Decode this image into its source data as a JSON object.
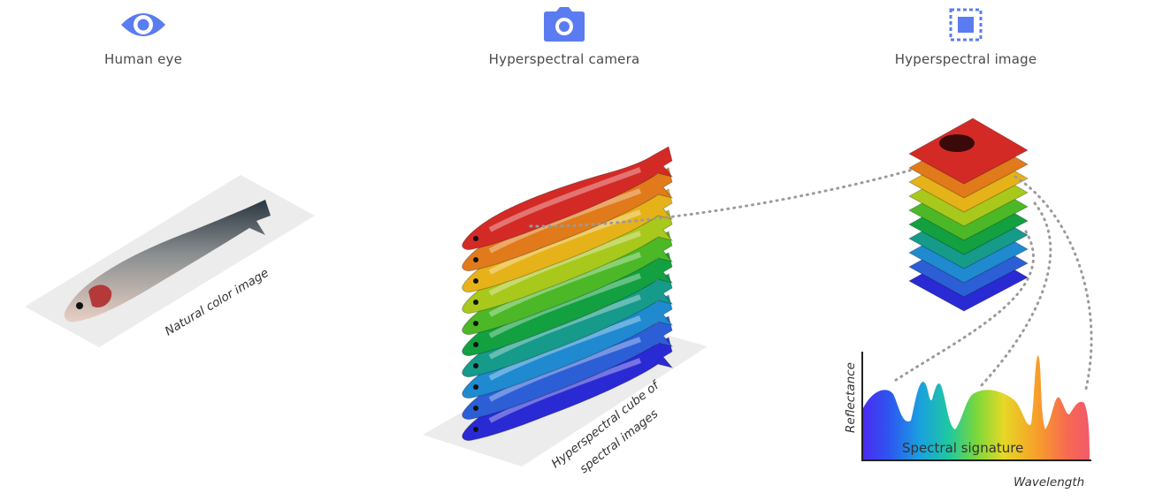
{
  "headers": {
    "human_eye": "Human eye",
    "camera": "Hyperspectral camera",
    "image": "Hyperspectral image"
  },
  "labels": {
    "natural": "Natural color image",
    "cube_line1": "Hyperspectral cube of",
    "cube_line2": "spectral images",
    "signature": "Spectral signature",
    "reflectance": "Reflectance",
    "wavelength": "Wavelength"
  },
  "colors": {
    "icon_blue": "#5b7cf0",
    "layers": [
      "#2a2ad4",
      "#2c5fd6",
      "#1f8ad0",
      "#169a8a",
      "#12a040",
      "#4cb828",
      "#a8c81c",
      "#e6b21a",
      "#e07a1a",
      "#d42a26"
    ],
    "dots": "#9a9a9a",
    "platform": "#ececec"
  },
  "icons": [
    "eye-icon",
    "camera-icon",
    "selection-icon"
  ]
}
